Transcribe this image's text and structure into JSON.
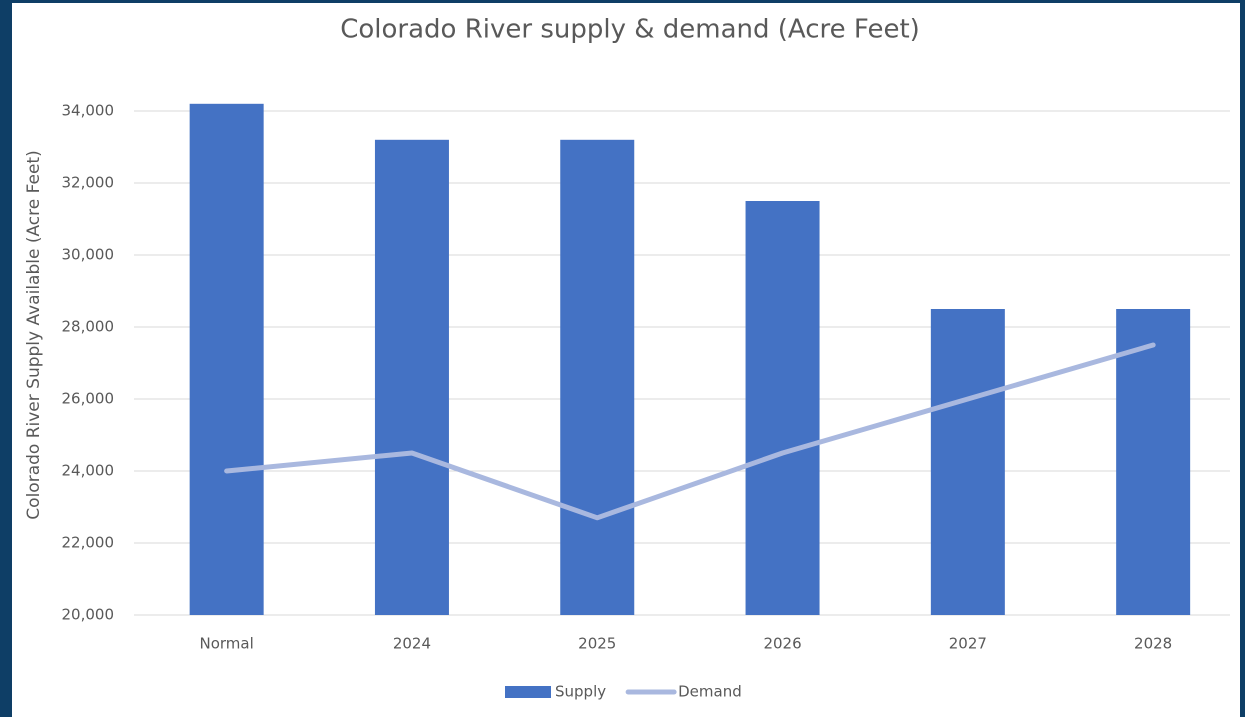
{
  "chart_data": {
    "type": "bar_line",
    "title": "Colorado River supply & demand (Acre Feet)",
    "y_label": "Colorado River Supply Available (Acre Feet)",
    "categories": [
      "Normal",
      "2024",
      "2025",
      "2026",
      "2027",
      "2028"
    ],
    "series": [
      {
        "name": "Supply",
        "type": "bar",
        "color": "#4472c4",
        "values": [
          34200,
          33200,
          33200,
          31500,
          28500,
          28500
        ]
      },
      {
        "name": "Demand",
        "type": "line",
        "color": "#a9b8df",
        "values": [
          24000,
          24500,
          22700,
          24500,
          26000,
          27500
        ]
      }
    ],
    "ylim": [
      20000,
      34000
    ],
    "yticks": [
      {
        "value": 20000,
        "label": "20,000"
      },
      {
        "value": 22000,
        "label": "22,000"
      },
      {
        "value": 24000,
        "label": "24,000"
      },
      {
        "value": 26000,
        "label": "26,000"
      },
      {
        "value": 28000,
        "label": "28,000"
      },
      {
        "value": 30000,
        "label": "30,000"
      },
      {
        "value": 32000,
        "label": "32,000"
      },
      {
        "value": 34000,
        "label": "34,000"
      }
    ],
    "grid": true,
    "legend": "bottom"
  }
}
